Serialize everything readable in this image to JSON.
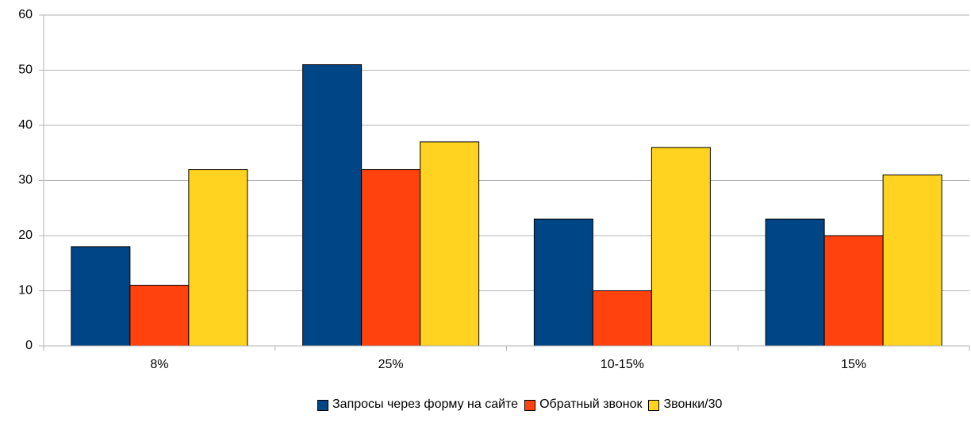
{
  "chart_data": {
    "type": "bar",
    "categories": [
      "8%",
      "25%",
      "10-15%",
      "15%"
    ],
    "series": [
      {
        "name": "Запросы через форму на сайте",
        "color": "#004586",
        "values": [
          18,
          51,
          23,
          23
        ]
      },
      {
        "name": "Обратный звонок",
        "color": "#ff420e",
        "values": [
          11,
          32,
          10,
          20
        ]
      },
      {
        "name": "Звонки/30",
        "color": "#ffd320",
        "values": [
          32,
          37,
          36,
          31
        ]
      }
    ],
    "ylim": [
      0,
      60
    ],
    "yticks": [
      0,
      10,
      20,
      30,
      40,
      50,
      60
    ],
    "grid": true,
    "legend": "bottom"
  }
}
